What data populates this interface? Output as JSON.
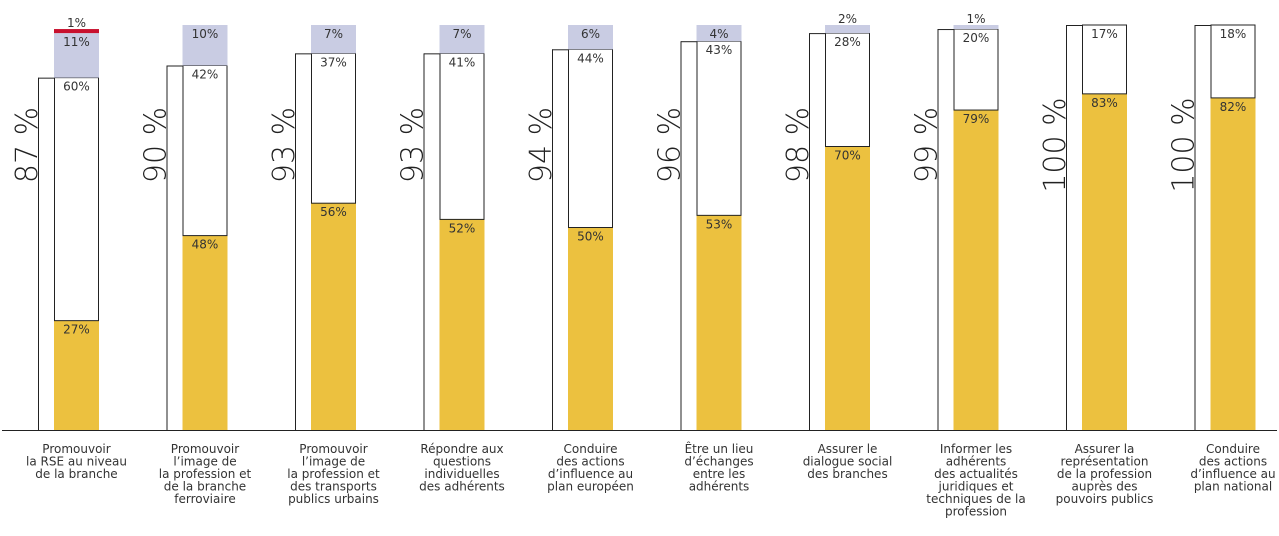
{
  "chart_data": {
    "type": "bar",
    "stacked": true,
    "ylim": [
      0,
      100
    ],
    "colors": {
      "yellow": "#ECC13F",
      "white": "#FFFFFF",
      "lavender": "#C9CCE3",
      "red": "#C8102E",
      "outline": "#222222"
    },
    "categories": [
      {
        "label_lines": [
          "Promouvoir",
          "la RSE au niveau",
          "de la branche"
        ],
        "total": "87 %",
        "segments": [
          {
            "value": 27,
            "label": "27%",
            "color": "yellow"
          },
          {
            "value": 60,
            "label": "60%",
            "color": "white"
          },
          {
            "value": 11,
            "label": "11%",
            "color": "lavender"
          },
          {
            "value": 1,
            "label": "1%",
            "color": "red"
          }
        ]
      },
      {
        "label_lines": [
          "Promouvoir",
          "l’image de",
          "la profession et",
          "de la branche",
          "ferroviaire"
        ],
        "total": "90 %",
        "segments": [
          {
            "value": 48,
            "label": "48%",
            "color": "yellow"
          },
          {
            "value": 42,
            "label": "42%",
            "color": "white"
          },
          {
            "value": 10,
            "label": "10%",
            "color": "lavender"
          }
        ]
      },
      {
        "label_lines": [
          "Promouvoir",
          "l’image de",
          "la profession et",
          "des transports",
          "publics urbains"
        ],
        "total": "93 %",
        "segments": [
          {
            "value": 56,
            "label": "56%",
            "color": "yellow"
          },
          {
            "value": 37,
            "label": "37%",
            "color": "white"
          },
          {
            "value": 7,
            "label": "7%",
            "color": "lavender"
          }
        ]
      },
      {
        "label_lines": [
          "Répondre aux",
          "questions",
          "individuelles",
          "des adhérents"
        ],
        "total": "93 %",
        "segments": [
          {
            "value": 52,
            "label": "52%",
            "color": "yellow"
          },
          {
            "value": 41,
            "label": "41%",
            "color": "white"
          },
          {
            "value": 7,
            "label": "7%",
            "color": "lavender"
          }
        ]
      },
      {
        "label_lines": [
          "Conduire",
          "des actions",
          "d’influence au",
          "plan européen"
        ],
        "total": "94 %",
        "segments": [
          {
            "value": 50,
            "label": "50%",
            "color": "yellow"
          },
          {
            "value": 44,
            "label": "44%",
            "color": "white"
          },
          {
            "value": 6,
            "label": "6%",
            "color": "lavender"
          }
        ]
      },
      {
        "label_lines": [
          "Être un lieu",
          "d’échanges",
          "entre les",
          "adhérents"
        ],
        "total": "96 %",
        "segments": [
          {
            "value": 53,
            "label": "53%",
            "color": "yellow"
          },
          {
            "value": 43,
            "label": "43%",
            "color": "white"
          },
          {
            "value": 4,
            "label": "4%",
            "color": "lavender"
          }
        ]
      },
      {
        "label_lines": [
          "Assurer le",
          "dialogue social",
          "des branches"
        ],
        "total": "98 %",
        "segments": [
          {
            "value": 70,
            "label": "70%",
            "color": "yellow"
          },
          {
            "value": 28,
            "label": "28%",
            "color": "white"
          },
          {
            "value": 2,
            "label": "2%",
            "color": "lavender"
          }
        ]
      },
      {
        "label_lines": [
          "Informer les",
          "adhérents",
          "des actualités",
          "juridiques et",
          "techniques de la",
          "profession"
        ],
        "total": "99 %",
        "segments": [
          {
            "value": 79,
            "label": "79%",
            "color": "yellow"
          },
          {
            "value": 20,
            "label": "20%",
            "color": "white"
          },
          {
            "value": 1,
            "label": "1%",
            "color": "lavender"
          }
        ]
      },
      {
        "label_lines": [
          "Assurer la",
          "représentation",
          "de la profession",
          "auprès des",
          "pouvoirs publics"
        ],
        "total": "100 %",
        "segments": [
          {
            "value": 83,
            "label": "83%",
            "color": "yellow"
          },
          {
            "value": 17,
            "label": "17%",
            "color": "white"
          }
        ]
      },
      {
        "label_lines": [
          "Conduire",
          "des actions",
          "d’influence au",
          "plan national"
        ],
        "total": "100 %",
        "segments": [
          {
            "value": 82,
            "label": "82%",
            "color": "yellow"
          },
          {
            "value": 18,
            "label": "18%",
            "color": "white"
          }
        ]
      }
    ]
  }
}
